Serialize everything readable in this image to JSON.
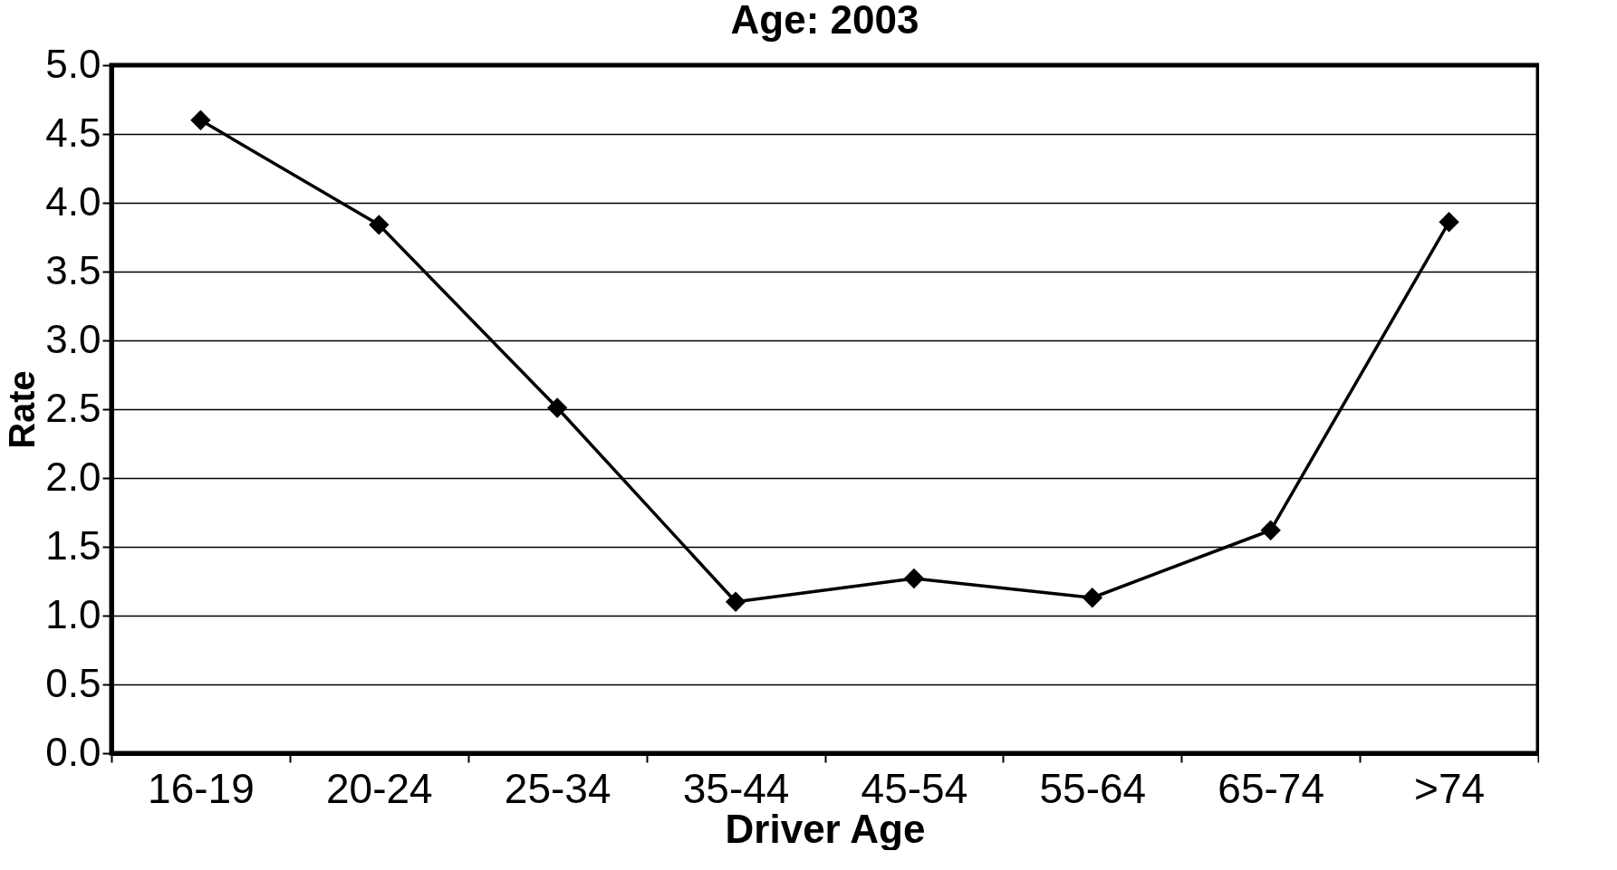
{
  "chart_data": {
    "type": "line",
    "title": "Age: 2003",
    "xlabel": "Driver Age",
    "ylabel": "Rate",
    "categories": [
      "16-19",
      "20-24",
      "25-34",
      "35-44",
      "45-54",
      "55-64",
      "65-74",
      ">74"
    ],
    "series": [
      {
        "color": "#000000",
        "values": [
          4.6,
          3.84,
          2.51,
          1.1,
          1.27,
          1.13,
          1.62,
          3.86
        ]
      }
    ],
    "ylim": [
      0,
      5
    ],
    "yticks": [
      {
        "value": 0,
        "label": "0.0"
      },
      0.5,
      {
        "value": 1,
        "label": "1.0"
      },
      1.5,
      {
        "value": 2,
        "label": "2.0"
      },
      2.5,
      {
        "value": 3,
        "label": "3.0"
      },
      3.5,
      {
        "value": 4,
        "label": "4.0"
      },
      4.5,
      {
        "value": 5,
        "label": "5.0"
      }
    ],
    "grid": "y",
    "marker": "diamond",
    "line_style": "solid"
  }
}
